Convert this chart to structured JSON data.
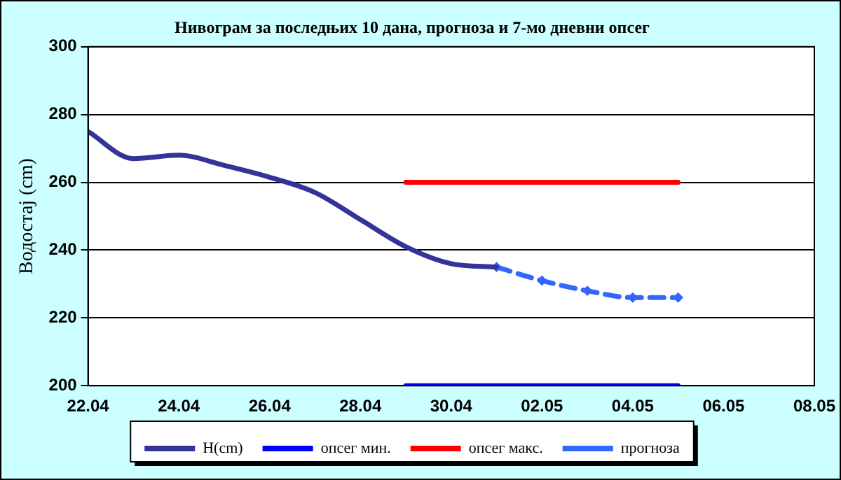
{
  "chart_data": {
    "type": "line",
    "title": "Нивограм за последњих 10 дана, прогноза и 7-мо дневни опсег",
    "ylabel": "Водостај (cm)",
    "xlim": [
      "--04-22",
      "--05-08"
    ],
    "xticks": [
      {
        "value": "--04-22",
        "label": "22.04"
      },
      {
        "value": "--04-24",
        "label": "24.04"
      },
      {
        "value": "--04-26",
        "label": "26.04"
      },
      {
        "value": "--04-28",
        "label": "28.04"
      },
      {
        "value": "--04-30",
        "label": "30.04"
      },
      {
        "value": "--05-02",
        "label": "02.05"
      },
      {
        "value": "--05-04",
        "label": "04.05"
      },
      {
        "value": "--05-06",
        "label": "06.05"
      },
      {
        "value": "--05-08",
        "label": "08.05"
      }
    ],
    "ylim": [
      200,
      300
    ],
    "yticks": [
      200,
      220,
      240,
      260,
      280,
      300
    ],
    "grid": "y",
    "legend": "bottom",
    "series": [
      {
        "name": "H(cm)",
        "color": "#333399",
        "x": [
          "--04-22",
          "--04-23",
          "--04-24",
          "--04-25",
          "--04-26",
          "--04-27",
          "--04-28",
          "--04-29",
          "--04-30",
          "--05-01"
        ],
        "values": [
          275,
          267,
          268,
          265,
          261.5,
          257,
          249,
          241,
          236,
          235
        ],
        "marker": "none",
        "line_style": "solid"
      },
      {
        "name": "опсег мин.",
        "color": "#0000ff",
        "x": [
          "--04-29",
          "--05-05"
        ],
        "values": [
          200,
          200
        ],
        "marker": "none",
        "line_style": "solid"
      },
      {
        "name": "опсег макс.",
        "color": "#ff0000",
        "x": [
          "--04-29",
          "--05-05"
        ],
        "values": [
          260,
          260
        ],
        "marker": "none",
        "line_style": "solid"
      },
      {
        "name": "прогноза",
        "color": "#3366ff",
        "x": [
          "--05-01",
          "--05-02",
          "--05-03",
          "--05-04",
          "--05-05"
        ],
        "values": [
          235,
          231,
          228,
          226,
          226
        ],
        "marker": "diamond",
        "line_style": "dashed"
      }
    ]
  }
}
